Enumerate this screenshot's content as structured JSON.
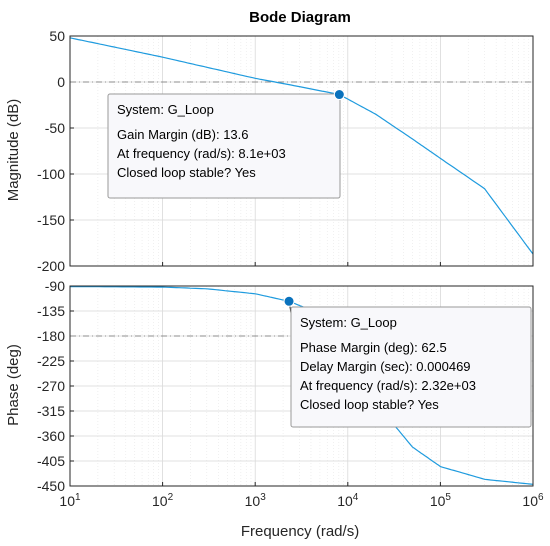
{
  "chart_data": {
    "type": "line",
    "title": "Bode Diagram",
    "xlabel": "Frequency  (rad/s)",
    "x_scale": "log",
    "xlim": [
      10,
      1000000
    ],
    "x_ticks": [
      10,
      100,
      1000,
      10000,
      100000,
      1000000
    ],
    "grid": true,
    "line_color": "#1f9bde",
    "marker_color": "#0a72bd",
    "panels": [
      {
        "name": "magnitude",
        "ylabel": "Magnitude (dB)",
        "ylim": [
          -200,
          50
        ],
        "y_ticks": [
          50,
          0,
          -50,
          -100,
          -150,
          -200
        ],
        "reference_line": 0,
        "x": [
          10,
          30,
          100,
          300,
          1000,
          3000,
          8100,
          20000,
          50000,
          100000,
          300000,
          1000000
        ],
        "y": [
          48,
          38,
          27,
          16,
          4,
          -5,
          -13.6,
          -35,
          -62,
          -83,
          -116,
          -187
        ],
        "marker": {
          "x": 8100,
          "y": -13.6
        },
        "datatip": {
          "system": "System: G_Loop",
          "lines": [
            "Gain Margin (dB): 13.6",
            "At frequency (rad/s): 8.1e+03",
            "Closed loop stable? Yes"
          ]
        }
      },
      {
        "name": "phase",
        "ylabel": "Phase (deg)",
        "ylim": [
          -450,
          -90
        ],
        "y_ticks": [
          -90,
          -135,
          -180,
          -225,
          -270,
          -315,
          -360,
          -405,
          -450
        ],
        "reference_line": -180,
        "x": [
          10,
          100,
          300,
          1000,
          2320,
          5000,
          10000,
          20000,
          50000,
          100000,
          300000,
          1000000
        ],
        "y": [
          -91,
          -92,
          -95,
          -104,
          -117.5,
          -140,
          -190,
          -300,
          -380,
          -415,
          -438,
          -447
        ],
        "marker": {
          "x": 2320,
          "y": -117.5
        },
        "datatip": {
          "system": "System: G_Loop",
          "lines": [
            "Phase Margin (deg): 62.5",
            "Delay Margin (sec): 0.000469",
            "At frequency (rad/s): 2.32e+03",
            "Closed loop stable? Yes"
          ]
        }
      }
    ]
  }
}
